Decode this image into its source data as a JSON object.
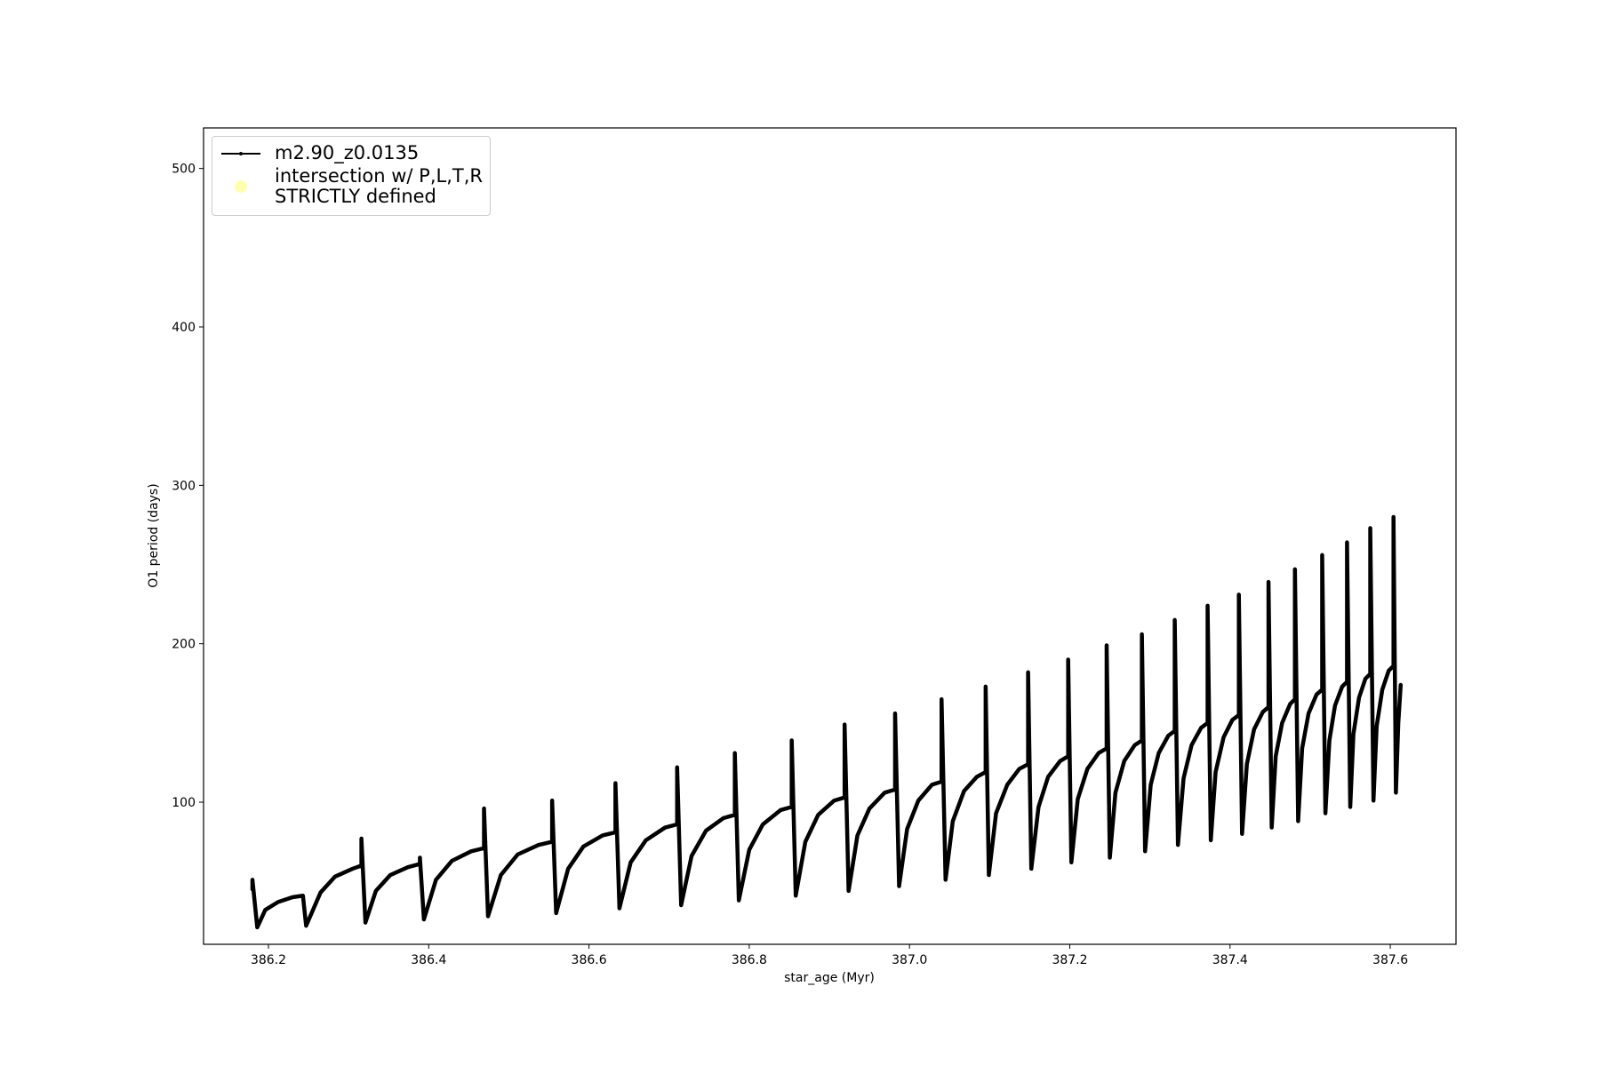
{
  "chart_data": {
    "type": "line",
    "xlabel": "star_age (Myr)",
    "ylabel": "O1 period (days)",
    "xlim": [
      386.119,
      387.682
    ],
    "ylim": [
      10.3,
      525.6
    ],
    "xticks": [
      386.2,
      386.4,
      386.6,
      386.8,
      {
        "value": 387,
        "label": "387.0"
      },
      387.2,
      387.4,
      387.6
    ],
    "yticks": [
      100,
      200,
      300,
      400,
      500
    ],
    "legend": "upper left",
    "series": [
      {
        "name": "m2.90_z0.0135",
        "color": "#000000",
        "x": [
          386.18,
          386.18,
          386.186,
          386.196,
          386.212,
          386.23,
          386.243,
          386.247,
          386.265,
          386.283,
          386.305,
          386.316,
          386.316,
          386.321,
          386.334,
          386.352,
          386.374,
          386.389,
          386.389,
          386.394,
          386.409,
          386.429,
          386.453,
          386.469,
          386.469,
          386.474,
          386.49,
          386.511,
          386.537,
          386.554,
          386.554,
          386.559,
          386.574,
          386.593,
          386.617,
          386.633,
          386.633,
          386.638,
          386.652,
          386.671,
          386.695,
          386.71,
          386.71,
          386.715,
          386.728,
          386.746,
          386.768,
          386.782,
          386.782,
          386.787,
          386.8,
          386.817,
          386.839,
          386.853,
          386.853,
          386.858,
          386.87,
          386.886,
          386.906,
          386.919,
          386.919,
          386.924,
          386.935,
          386.95,
          386.969,
          386.982,
          386.982,
          386.987,
          386.997,
          387.011,
          387.028,
          387.04,
          387.04,
          387.045,
          387.054,
          387.068,
          387.084,
          387.095,
          387.095,
          387.099,
          387.108,
          387.122,
          387.137,
          387.148,
          387.148,
          387.152,
          387.161,
          387.173,
          387.188,
          387.198,
          387.198,
          387.202,
          387.21,
          387.222,
          387.236,
          387.246,
          387.246,
          387.25,
          387.257,
          387.268,
          387.281,
          387.29,
          387.29,
          387.294,
          387.301,
          387.311,
          387.323,
          387.331,
          387.331,
          387.335,
          387.342,
          387.352,
          387.364,
          387.372,
          387.372,
          387.376,
          387.382,
          387.392,
          387.403,
          387.411,
          387.411,
          387.415,
          387.421,
          387.43,
          387.441,
          387.448,
          387.448,
          387.452,
          387.457,
          387.465,
          387.475,
          387.481,
          387.481,
          387.485,
          387.49,
          387.498,
          387.508,
          387.515,
          387.515,
          387.519,
          387.524,
          387.531,
          387.54,
          387.546,
          387.546,
          387.55,
          387.554,
          387.561,
          387.569,
          387.575,
          387.575,
          387.579,
          387.583,
          387.59,
          387.598,
          387.604,
          387.604,
          387.607,
          387.61,
          387.613
        ],
        "values": [
          45,
          51,
          21,
          32,
          37,
          40,
          41,
          22,
          43,
          53,
          58,
          60,
          77,
          24,
          44,
          54,
          59,
          61,
          65,
          26,
          51,
          63,
          69,
          71,
          96,
          28,
          54,
          67,
          73,
          75,
          101,
          30,
          58,
          72,
          79,
          81,
          112,
          33,
          62,
          76,
          84,
          86,
          122,
          35,
          66,
          82,
          90,
          92,
          131,
          38,
          70,
          86,
          95,
          97,
          139,
          41,
          75,
          92,
          101,
          103,
          149,
          44,
          79,
          96,
          106,
          108,
          156,
          47,
          83,
          101,
          111,
          113,
          165,
          51,
          88,
          107,
          116,
          119,
          173,
          54,
          93,
          111,
          121,
          124,
          182,
          58,
          97,
          116,
          126,
          129,
          190,
          62,
          102,
          121,
          131,
          134,
          199,
          65,
          106,
          126,
          136,
          139,
          206,
          69,
          111,
          131,
          142,
          145,
          215,
          73,
          115,
          136,
          147,
          150,
          224,
          76,
          119,
          141,
          152,
          155,
          231,
          80,
          124,
          146,
          157,
          160,
          239,
          84,
          129,
          150,
          162,
          165,
          247,
          88,
          134,
          156,
          168,
          171,
          256,
          93,
          139,
          161,
          173,
          176,
          264,
          97,
          143,
          166,
          178,
          181,
          273,
          101,
          148,
          171,
          183,
          186,
          280,
          106,
          150,
          174
        ]
      },
      {
        "name": "intersection w/ P,L,T,R\nSTRICTLY defined",
        "color": "#ffffb0",
        "x": [],
        "values": []
      }
    ]
  }
}
